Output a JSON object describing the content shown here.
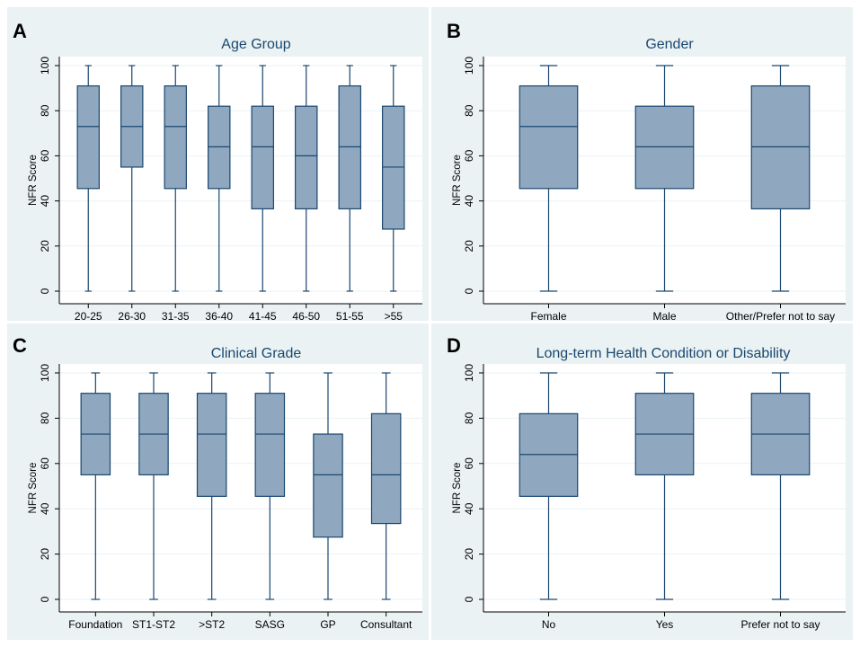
{
  "colors": {
    "panel_background": "#eaf2f3",
    "plot_background": "#ffffff",
    "box_fill": "#90a8bf",
    "box_stroke": "#1a476f",
    "title_color": "#1a476f"
  },
  "chart_data": [
    {
      "type": "box",
      "letter": "A",
      "title": "Age Group",
      "ylabel": "NFR Score",
      "ylim": [
        0,
        100
      ],
      "yticks": [
        "0",
        "20",
        "40",
        "60",
        "80",
        "100"
      ],
      "categories": [
        "20-25",
        "26-30",
        "31-35",
        "36-40",
        "41-45",
        "46-50",
        "51-55",
        ">55"
      ],
      "boxes": [
        {
          "min": 0,
          "q1": 45.5,
          "median": 73,
          "q3": 91,
          "max": 100
        },
        {
          "min": 0,
          "q1": 55,
          "median": 73,
          "q3": 91,
          "max": 100
        },
        {
          "min": 0,
          "q1": 45.5,
          "median": 73,
          "q3": 91,
          "max": 100
        },
        {
          "min": 0,
          "q1": 45.5,
          "median": 64,
          "q3": 82,
          "max": 100
        },
        {
          "min": 0,
          "q1": 36.5,
          "median": 64,
          "q3": 82,
          "max": 100
        },
        {
          "min": 0,
          "q1": 36.5,
          "median": 60,
          "q3": 82,
          "max": 100
        },
        {
          "min": 0,
          "q1": 36.5,
          "median": 64,
          "q3": 91,
          "max": 100
        },
        {
          "min": 0,
          "q1": 27.5,
          "median": 55,
          "q3": 82,
          "max": 100
        }
      ]
    },
    {
      "type": "box",
      "letter": "B",
      "title": "Gender",
      "ylabel": "NFR Score",
      "ylim": [
        0,
        100
      ],
      "yticks": [
        "0",
        "20",
        "40",
        "60",
        "80",
        "100"
      ],
      "categories": [
        "Female",
        "Male",
        "Other/Prefer not to say"
      ],
      "boxes": [
        {
          "min": 0,
          "q1": 45.5,
          "median": 73,
          "q3": 91,
          "max": 100
        },
        {
          "min": 0,
          "q1": 45.5,
          "median": 64,
          "q3": 82,
          "max": 100
        },
        {
          "min": 0,
          "q1": 36.5,
          "median": 64,
          "q3": 91,
          "max": 100
        }
      ]
    },
    {
      "type": "box",
      "letter": "C",
      "title": "Clinical Grade",
      "ylabel": "NFR Score",
      "ylim": [
        0,
        100
      ],
      "yticks": [
        "0",
        "20",
        "40",
        "60",
        "80",
        "100"
      ],
      "categories": [
        "Foundation",
        "ST1-ST2",
        ">ST2",
        "SASG",
        "GP",
        "Consultant"
      ],
      "boxes": [
        {
          "min": 0,
          "q1": 55,
          "median": 73,
          "q3": 91,
          "max": 100
        },
        {
          "min": 0,
          "q1": 55,
          "median": 73,
          "q3": 91,
          "max": 100
        },
        {
          "min": 0,
          "q1": 45.5,
          "median": 73,
          "q3": 91,
          "max": 100
        },
        {
          "min": 0,
          "q1": 45.5,
          "median": 73,
          "q3": 91,
          "max": 100
        },
        {
          "min": 0,
          "q1": 27.5,
          "median": 55,
          "q3": 73,
          "max": 100
        },
        {
          "min": 0,
          "q1": 33.5,
          "median": 55,
          "q3": 82,
          "max": 100
        }
      ]
    },
    {
      "type": "box",
      "letter": "D",
      "title": "Long-term Health Condition or Disability",
      "ylabel": "NFR Score",
      "ylim": [
        0,
        100
      ],
      "yticks": [
        "0",
        "20",
        "40",
        "60",
        "80",
        "100"
      ],
      "categories": [
        "No",
        "Yes",
        "Prefer not to say"
      ],
      "boxes": [
        {
          "min": 0,
          "q1": 45.5,
          "median": 64,
          "q3": 82,
          "max": 100
        },
        {
          "min": 0,
          "q1": 55,
          "median": 73,
          "q3": 91,
          "max": 100
        },
        {
          "min": 0,
          "q1": 55,
          "median": 73,
          "q3": 91,
          "max": 100
        }
      ]
    }
  ]
}
